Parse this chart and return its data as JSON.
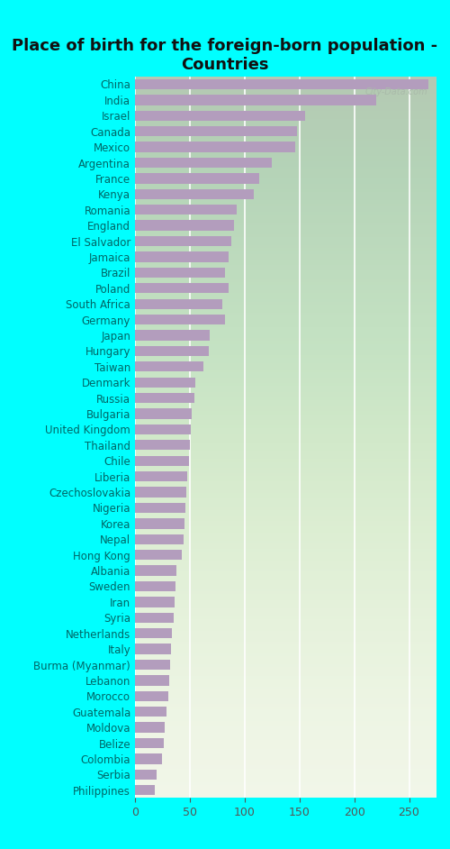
{
  "title": "Place of birth for the foreign-born population -\nCountries",
  "background_color": "#00FFFF",
  "plot_bg_top": "#f8f8f0",
  "plot_bg_bottom": "#d8edcc",
  "bar_color": "#b39dbd",
  "categories": [
    "China",
    "India",
    "Israel",
    "Canada",
    "Mexico",
    "Argentina",
    "France",
    "Kenya",
    "Romania",
    "England",
    "El Salvador",
    "Jamaica",
    "Brazil",
    "Poland",
    "South Africa",
    "Germany",
    "Japan",
    "Hungary",
    "Taiwan",
    "Denmark",
    "Russia",
    "Bulgaria",
    "United Kingdom",
    "Thailand",
    "Chile",
    "Liberia",
    "Czechoslovakia",
    "Nigeria",
    "Korea",
    "Nepal",
    "Hong Kong",
    "Albania",
    "Sweden",
    "Iran",
    "Syria",
    "Netherlands",
    "Italy",
    "Burma (Myanmar)",
    "Lebanon",
    "Morocco",
    "Guatemala",
    "Moldova",
    "Belize",
    "Colombia",
    "Serbia",
    "Philippines"
  ],
  "values": [
    268,
    220,
    155,
    148,
    146,
    125,
    113,
    108,
    93,
    90,
    88,
    85,
    82,
    85,
    80,
    82,
    68,
    67,
    62,
    55,
    54,
    52,
    51,
    50,
    49,
    48,
    47,
    46,
    45,
    44,
    43,
    38,
    37,
    36,
    35,
    34,
    33,
    32,
    31,
    30,
    29,
    27,
    26,
    25,
    20,
    18
  ],
  "xlim": [
    0,
    275
  ],
  "xticks": [
    0,
    50,
    100,
    150,
    200,
    250
  ],
  "title_fontsize": 13,
  "label_fontsize": 8.5,
  "tick_fontsize": 9,
  "label_color": "#006666",
  "tick_color": "#555555",
  "watermark": "City-Data.com"
}
